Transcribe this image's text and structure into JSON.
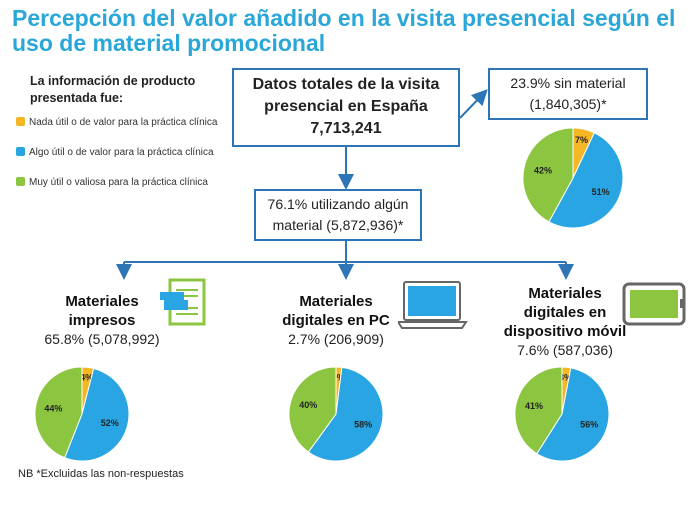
{
  "title": "Percepción del valor añadido en la visita presencial según el uso de material promocional",
  "legend": {
    "heading": "La información de producto presentada fue:",
    "items": [
      {
        "label": "Nada útil o de valor para la práctica clínica",
        "color": "#f6b724"
      },
      {
        "label": "Algo útil o de valor para la práctica clínica",
        "color": "#29a5e3"
      },
      {
        "label": "Muy útil o valiosa para la práctica clínica",
        "color": "#8cc540"
      }
    ]
  },
  "main_box": {
    "line1": "Datos totales de la visita",
    "line2": "presencial en España",
    "value": "7,713,241"
  },
  "sin_box": {
    "line1": "23.9% sin material",
    "line2": "(1,840,305)*"
  },
  "using_box": {
    "line1": "76.1% utilizando algún",
    "line2": "material (5,872,936)*"
  },
  "categories": {
    "impresos": {
      "title1": "Materiales",
      "title2": "impresos",
      "value": "65.8% (5,078,992)"
    },
    "pc": {
      "title1": "Materiales",
      "title2": "digitales en PC",
      "value": "2.7% (206,909)"
    },
    "movil": {
      "title1": "Materiales",
      "title2": "digitales en",
      "title3": "dispositivo móvil",
      "value": "7.6% (587,036)"
    }
  },
  "footnote": "NB *Excluidas las non-respuestas",
  "chart_data": [
    {
      "type": "pie",
      "name": "sin material",
      "labels": [
        "Nada útil",
        "Algo útil",
        "Muy útil"
      ],
      "values": [
        7,
        51,
        42
      ],
      "value_labels": [
        "7%",
        "51%",
        "42%"
      ]
    },
    {
      "type": "pie",
      "name": "Materiales impresos",
      "labels": [
        "Nada útil",
        "Algo útil",
        "Muy útil"
      ],
      "values": [
        4,
        52,
        44
      ],
      "value_labels": [
        "4%",
        "52%",
        "44%"
      ]
    },
    {
      "type": "pie",
      "name": "Materiales digitales en PC",
      "labels": [
        "Nada útil",
        "Algo útil",
        "Muy útil"
      ],
      "values": [
        2,
        58,
        40
      ],
      "value_labels": [
        "2%",
        "58%",
        "40%"
      ]
    },
    {
      "type": "pie",
      "name": "Materiales digitales en dispositivo móvil",
      "labels": [
        "Nada útil",
        "Algo útil",
        "Muy útil"
      ],
      "values": [
        3,
        56,
        41
      ],
      "value_labels": [
        "3%",
        "56%",
        "41%"
      ]
    }
  ]
}
